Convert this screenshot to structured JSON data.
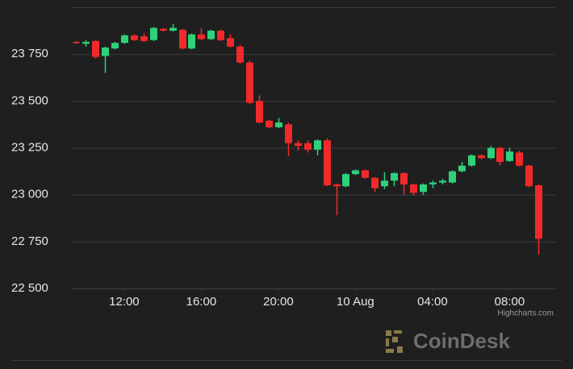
{
  "chart_data": {
    "type": "candlestick",
    "x": [
      9.5,
      10,
      10.5,
      11,
      11.5,
      12,
      12.5,
      13,
      13.5,
      14,
      14.5,
      15,
      15.5,
      16,
      16.5,
      17,
      17.5,
      18,
      18.5,
      19,
      19.5,
      20,
      20.5,
      21,
      21.5,
      22,
      22.5,
      23,
      23.5,
      24,
      24.5,
      25,
      25.5,
      26,
      26.5,
      27,
      27.5,
      28,
      28.5,
      29,
      29.5,
      30,
      30.5,
      31,
      31.5,
      32,
      32.5,
      33,
      33.5
    ],
    "open": [
      23815,
      23805,
      23820,
      23740,
      23780,
      23810,
      23850,
      23845,
      23825,
      23885,
      23875,
      23880,
      23780,
      23855,
      23830,
      23875,
      23835,
      23790,
      23705,
      23500,
      23395,
      23360,
      23375,
      23275,
      23275,
      23240,
      23290,
      23055,
      23045,
      23110,
      23130,
      23090,
      23045,
      23075,
      23115,
      23055,
      23015,
      23055,
      23065,
      23065,
      23125,
      23155,
      23210,
      23195,
      23250,
      23180,
      23225,
      23155,
      23050
    ],
    "high": [
      23820,
      23825,
      23825,
      23790,
      23815,
      23855,
      23855,
      23860,
      23895,
      23890,
      23910,
      23885,
      23860,
      23890,
      23880,
      23880,
      23855,
      23800,
      23715,
      23530,
      23400,
      23410,
      23385,
      23290,
      23290,
      23295,
      23300,
      23060,
      23115,
      23135,
      23135,
      23095,
      23120,
      23120,
      23120,
      23060,
      23060,
      23075,
      23085,
      23130,
      23175,
      23215,
      23215,
      23260,
      23255,
      23250,
      23235,
      23160,
      23055
    ],
    "low": [
      23805,
      23790,
      23725,
      23650,
      23775,
      23805,
      23820,
      23815,
      23820,
      23870,
      23870,
      23775,
      23775,
      23825,
      23825,
      23820,
      23785,
      23700,
      23485,
      23380,
      23355,
      23355,
      23205,
      23235,
      23225,
      23210,
      23045,
      22890,
      23040,
      23105,
      23085,
      23015,
      23030,
      23045,
      23000,
      22995,
      23000,
      23035,
      23055,
      23060,
      23120,
      23150,
      23190,
      23190,
      23155,
      23175,
      23150,
      23040,
      22680
    ],
    "close": [
      23810,
      23815,
      23735,
      23785,
      23810,
      23850,
      23825,
      23820,
      23890,
      23875,
      23890,
      23780,
      23855,
      23830,
      23875,
      23825,
      23790,
      23705,
      23490,
      23385,
      23360,
      23385,
      23275,
      23260,
      23240,
      23290,
      23050,
      23045,
      23110,
      23130,
      23090,
      23035,
      23075,
      23115,
      23055,
      23010,
      23055,
      23065,
      23075,
      23125,
      23155,
      23210,
      23195,
      23250,
      23175,
      23230,
      23155,
      23045,
      22765
    ],
    "up_color": "#2fd17a",
    "down_color": "#f02a2a",
    "xlim": [
      9.24,
      34.37
    ],
    "xticks": [
      {
        "value": 12,
        "label": "12:00"
      },
      {
        "value": 16,
        "label": "16:00"
      },
      {
        "value": 20,
        "label": "20:00"
      },
      {
        "value": 24,
        "label": "10 Aug"
      },
      {
        "value": 28,
        "label": "04:00"
      },
      {
        "value": 32,
        "label": "08:00"
      }
    ],
    "ylim": [
      22500,
      24000
    ],
    "yticks": [
      {
        "value": 22500,
        "label": "22 500"
      },
      {
        "value": 22750,
        "label": "22 750"
      },
      {
        "value": 23000,
        "label": "23 000"
      },
      {
        "value": 23250,
        "label": "23 250"
      },
      {
        "value": 23500,
        "label": "23 500"
      },
      {
        "value": 23750,
        "label": "23 750"
      }
    ],
    "grid": true,
    "credits": "Highcharts.com",
    "watermark": "CoinDesk"
  }
}
